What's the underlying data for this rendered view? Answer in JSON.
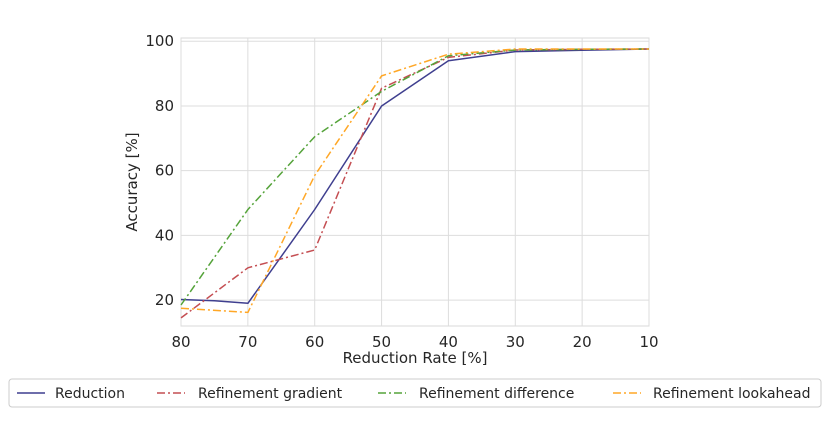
{
  "chart_data": {
    "type": "line",
    "title": "",
    "xlabel": "Reduction Rate [%]",
    "ylabel": "Accuracy [%]",
    "xlim": [
      80,
      10
    ],
    "ylim": [
      12,
      101
    ],
    "grid": true,
    "legend_position": "bottom",
    "x_ticks": [
      80,
      70,
      60,
      50,
      40,
      30,
      20,
      10
    ],
    "y_ticks": [
      20,
      40,
      60,
      80,
      100
    ],
    "x_tick_labels": [
      "80",
      "70",
      "60",
      "50",
      "40",
      "30",
      "20",
      "10"
    ],
    "y_tick_labels": [
      "20",
      "40",
      "60",
      "80",
      "100"
    ],
    "series": [
      {
        "name": "Reduction",
        "color": "#3f3f8f",
        "dash": "solid",
        "x": [
          80,
          75,
          70,
          60,
          50,
          40,
          30,
          20,
          10
        ],
        "y": [
          20.2,
          19.8,
          19.0,
          48.0,
          80.0,
          94.0,
          96.8,
          97.2,
          97.6
        ]
      },
      {
        "name": "Refinement gradient",
        "color": "#c44e52",
        "dash": "dashdot",
        "x": [
          80,
          70,
          60,
          50,
          40,
          30,
          20,
          10
        ],
        "y": [
          14.5,
          30.0,
          35.5,
          85.5,
          95.0,
          97.3,
          97.5,
          97.6
        ]
      },
      {
        "name": "Refinement difference",
        "color": "#55a33a",
        "dash": "dashdot",
        "x": [
          80,
          70,
          60,
          50,
          40,
          30,
          20,
          10
        ],
        "y": [
          18.5,
          48.0,
          70.5,
          84.5,
          95.5,
          97.3,
          97.5,
          97.6
        ]
      },
      {
        "name": "Refinement lookahead",
        "color": "#ffa726",
        "dash": "dashdot",
        "x": [
          80,
          70,
          60,
          50,
          40,
          30,
          20,
          10
        ],
        "y": [
          17.5,
          16.2,
          58.5,
          89.3,
          96.0,
          97.6,
          97.6,
          97.6
        ]
      }
    ]
  }
}
